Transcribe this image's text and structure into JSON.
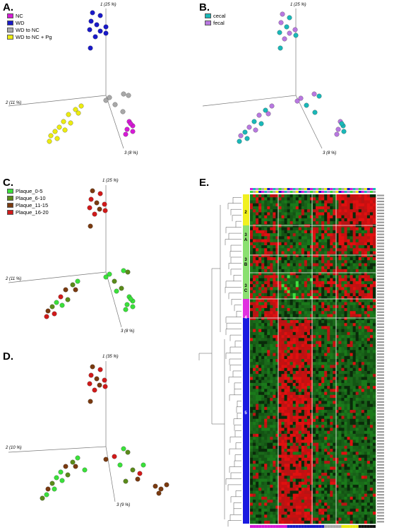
{
  "panels": {
    "A": {
      "label": "A.",
      "axis1": "1 (25 %)",
      "axis2": "2 (11 %)",
      "axis3": "3 (8 %)",
      "legend": [
        {
          "name": "NC",
          "color": "#d61ad6"
        },
        {
          "name": "WD",
          "color": "#1a1ac8"
        },
        {
          "name": "WD to NC",
          "color": "#a8a8a8"
        },
        {
          "name": "WD to NC + Pg",
          "color": "#ecec10"
        }
      ]
    },
    "B": {
      "label": "B.",
      "axis1": "1 (25 %)",
      "axis2": "",
      "axis3": "3 (8 %)",
      "legend": [
        {
          "name": "cecal",
          "color": "#1ab8b8"
        },
        {
          "name": "fecal",
          "color": "#b878e0"
        }
      ]
    },
    "C": {
      "label": "C.",
      "axis1": "1 (25 %)",
      "axis2": "2 (11 %)",
      "axis3": "3 (8 %)",
      "legend": [
        {
          "name": "Plaque_0-5",
          "color": "#3ae03a"
        },
        {
          "name": "Plaque_6-10",
          "color": "#5a8a1a"
        },
        {
          "name": "Plaque_11-15",
          "color": "#7a3a10"
        },
        {
          "name": "Plaque_16-20",
          "color": "#d01a1a"
        }
      ]
    },
    "D": {
      "label": "D.",
      "axis1": "1 (35 %)",
      "axis2": "2 (10 %)",
      "axis3": "3 (9 %)"
    },
    "E": {
      "label": "E.",
      "groups": [
        "2",
        "3\nA",
        "3\nB",
        "3\nC",
        "4",
        "5"
      ]
    }
  }
}
